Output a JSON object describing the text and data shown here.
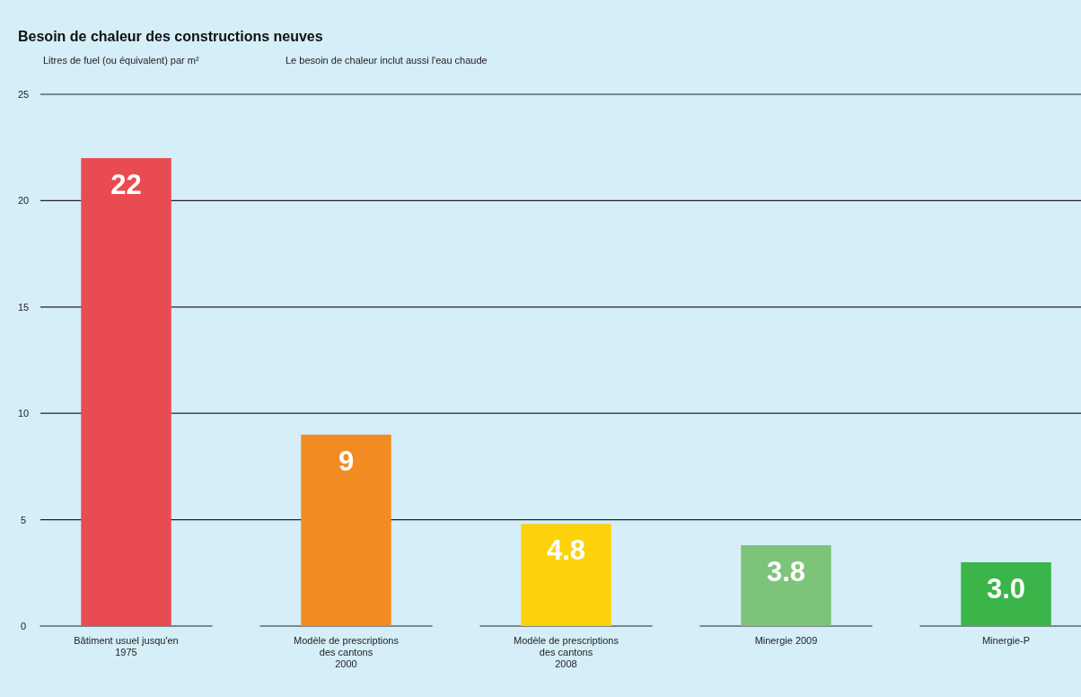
{
  "chart_data": {
    "type": "bar",
    "title": "Besoin de chaleur des constructions neuves",
    "ylabel": "Litres de fuel (ou équivalent) par m²",
    "annotations": [
      "Le besoin de chaleur inclut aussi l'eau chaude"
    ],
    "categories": [
      "Bâtiment usuel jusqu'en 1975",
      "Modèle de prescriptions des cantons 2000",
      "Modèle de prescriptions des cantons 2008",
      "Minergie 2009",
      "Minergie-P"
    ],
    "values": [
      22,
      9,
      4.8,
      3.8,
      3.0
    ],
    "value_labels": [
      "22",
      "9",
      "4.8",
      "3.8",
      "3.0"
    ],
    "colors": [
      "#e94b52",
      "#f28c22",
      "#fdd20a",
      "#7dc47a",
      "#3bb54a"
    ],
    "ylim": [
      0,
      25
    ],
    "yticks": [
      0,
      5,
      10,
      15,
      20,
      25
    ],
    "grid": "y"
  }
}
